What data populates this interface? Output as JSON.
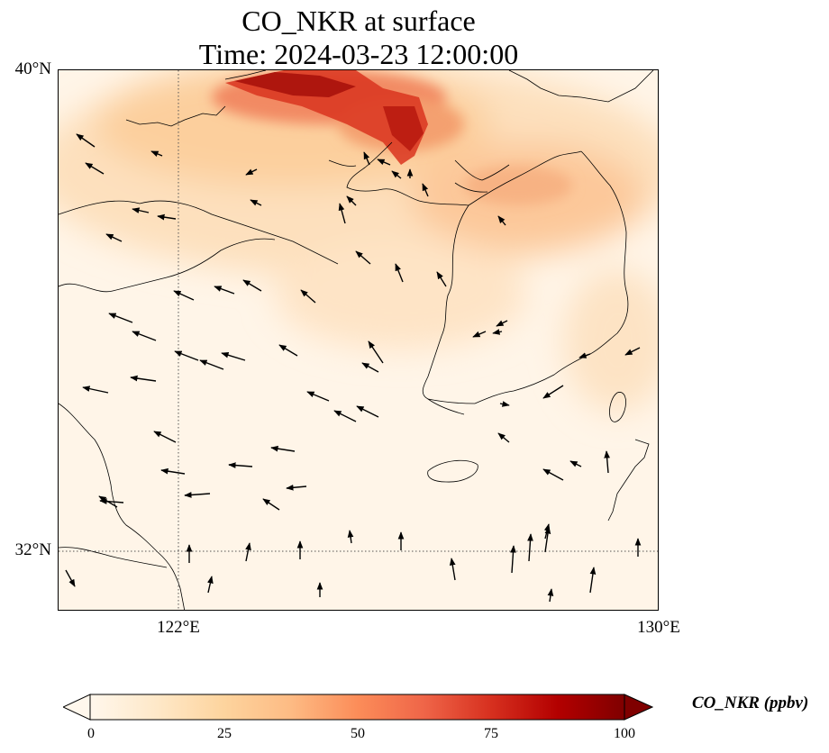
{
  "figure": {
    "title_line1": "CO_NKR at surface",
    "title_line2": "Time: 2024-03-23 12:00:00"
  },
  "map": {
    "lat_labels": [
      "40°N",
      "32°N"
    ],
    "lon_labels": [
      "122°E",
      "130°E"
    ],
    "extent_lon": [
      120,
      130
    ],
    "extent_lat": [
      31,
      40
    ],
    "gridlines": "dotted"
  },
  "colorbar": {
    "label": "CO_NKR (ppbv)",
    "ticks": [
      "0",
      "25",
      "50",
      "75",
      "100"
    ],
    "range": [
      0,
      100
    ],
    "colormap": "OrRd",
    "colors": [
      "#fff7ec",
      "#fee8c8",
      "#fdd49e",
      "#fdbb84",
      "#fc8d59",
      "#ef6548",
      "#d7301f",
      "#b30000",
      "#7f0000"
    ],
    "extend": "both"
  }
}
